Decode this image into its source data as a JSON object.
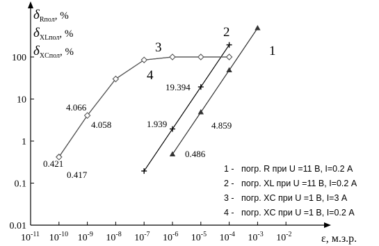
{
  "chart_data": {
    "type": "line",
    "xscale": "log",
    "yscale": "log",
    "grid": false,
    "y_axis_labels": [
      {
        "main": "δ",
        "sub": "Rпол",
        "unit": ", %"
      },
      {
        "main": "δ",
        "sub": "XLпол",
        "unit": ", %"
      },
      {
        "main": "δ",
        "sub": "XCпол",
        "unit": ", %"
      }
    ],
    "xlabel": "ε, м.з.р.",
    "y_ticks": [
      "0.01",
      "0.1",
      "1",
      "10",
      "100"
    ],
    "y_tick_values": [
      0.01,
      0.1,
      1,
      10,
      100
    ],
    "x_ticks": [
      {
        "base": "10",
        "exp": "-11",
        "value": 1e-11
      },
      {
        "base": "10",
        "exp": "-10",
        "value": 1e-10
      },
      {
        "base": "10",
        "exp": "-9",
        "value": 1e-09
      },
      {
        "base": "10",
        "exp": "-8",
        "value": 1e-08
      },
      {
        "base": "10",
        "exp": "-7",
        "value": 1e-07
      },
      {
        "base": "10",
        "exp": "-6",
        "value": 1e-06
      },
      {
        "base": "10",
        "exp": "-5",
        "value": 1e-05
      },
      {
        "base": "10",
        "exp": "-4",
        "value": 0.0001
      },
      {
        "base": "10",
        "exp": "-3",
        "value": 0.001
      },
      {
        "base": "10",
        "exp": "-2",
        "value": 0.01
      }
    ],
    "xlim": [
      1e-11,
      0.01
    ],
    "ylim": [
      0.01,
      1000
    ],
    "series": [
      {
        "id": "1",
        "marker": "triangle",
        "color": "#333333",
        "x": [
          1e-06,
          1e-05,
          0.0001,
          0.001
        ],
        "y": [
          0.486,
          4.859,
          48.6,
          486
        ]
      },
      {
        "id": "2",
        "marker": "plus",
        "color": "#000000",
        "x": [
          1e-07,
          1e-06,
          1e-05,
          0.0001
        ],
        "y": [
          0.194,
          1.939,
          19.394,
          193.9
        ]
      },
      {
        "id": "3",
        "marker": "diamond",
        "color": "#555555",
        "x": [
          1e-10,
          1e-09,
          1e-08,
          1e-07,
          1e-06,
          1e-05,
          0.0001
        ],
        "y": [
          0.421,
          4.066,
          30,
          85,
          100,
          100,
          100
        ]
      },
      {
        "id": "4",
        "marker": "diamond",
        "color": "#555555",
        "x": [
          1e-10,
          1e-09,
          1e-08,
          1e-07,
          1e-06,
          1e-05,
          0.0001
        ],
        "y": [
          0.417,
          4.058,
          30,
          85,
          100,
          100,
          100
        ]
      }
    ],
    "data_labels": [
      "0.421",
      "0.417",
      "4.066",
      "4.058",
      "1.939",
      "19.394",
      "4.859",
      "0.486"
    ],
    "series_numbers": [
      "1",
      "2",
      "3",
      "4"
    ],
    "legend": [
      "1 -   погр. R при U =11 В, I=0.2 А",
      "2 -   погр. XL при U =11 В, I=0.2 А",
      "3 -   погр. XC при U =1 В, I=3 А",
      "4 -   погр. XC при U =1 В, I=0.2 А"
    ]
  }
}
